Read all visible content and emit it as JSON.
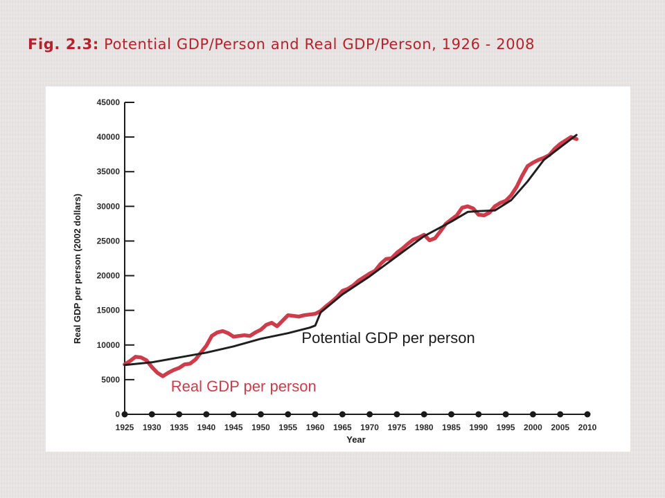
{
  "slide": {
    "title_bold": "Fig. 2.3:",
    "title_rest": "Potential GDP/Person and Real GDP/Person, 1926 - 2008"
  },
  "colors": {
    "title": "#b5212c",
    "real_series": "#cd3c4a",
    "potential_series": "#1f1f1f",
    "axis": "#1a1a1a"
  },
  "chart_data": {
    "type": "line",
    "title": "",
    "xlabel": "Year",
    "ylabel": "Real GDP per person (2002 dollars)",
    "xlim": [
      1925,
      2010
    ],
    "ylim": [
      0,
      45000
    ],
    "x_ticks": [
      1925,
      1930,
      1935,
      1940,
      1945,
      1950,
      1955,
      1960,
      1965,
      1970,
      1975,
      1980,
      1985,
      1990,
      1995,
      2000,
      2005,
      2010
    ],
    "y_ticks": [
      0,
      5000,
      10000,
      15000,
      20000,
      25000,
      30000,
      35000,
      40000,
      45000
    ],
    "grid": false,
    "series": [
      {
        "name": "Real GDP per person",
        "color": "#cd3c4a",
        "x": [
          1925,
          1926,
          1927,
          1928,
          1929,
          1930,
          1931,
          1932,
          1933,
          1934,
          1935,
          1936,
          1937,
          1938,
          1939,
          1940,
          1941,
          1942,
          1943,
          1944,
          1945,
          1946,
          1947,
          1948,
          1949,
          1950,
          1951,
          1952,
          1953,
          1954,
          1955,
          1956,
          1957,
          1958,
          1959,
          1960,
          1961,
          1962,
          1963,
          1964,
          1965,
          1966,
          1967,
          1968,
          1969,
          1970,
          1971,
          1972,
          1973,
          1974,
          1975,
          1976,
          1977,
          1978,
          1979,
          1980,
          1981,
          1982,
          1983,
          1984,
          1985,
          1986,
          1987,
          1988,
          1989,
          1990,
          1991,
          1992,
          1993,
          1994,
          1995,
          1996,
          1997,
          1998,
          1999,
          2000,
          2001,
          2002,
          2003,
          2004,
          2005,
          2006,
          2007,
          2008
        ],
        "values": [
          7200,
          7700,
          8300,
          8200,
          7800,
          6800,
          6000,
          5500,
          6000,
          6400,
          6700,
          7200,
          7300,
          7900,
          8900,
          9900,
          11300,
          11800,
          12000,
          11700,
          11200,
          11300,
          11400,
          11300,
          11800,
          12200,
          12900,
          13200,
          12700,
          13500,
          14300,
          14200,
          14100,
          14300,
          14400,
          14500,
          14900,
          15600,
          16200,
          16900,
          17800,
          18100,
          18600,
          19300,
          19800,
          20300,
          20700,
          21700,
          22400,
          22500,
          23300,
          23900,
          24600,
          25200,
          25500,
          25900,
          25100,
          25400,
          26400,
          27500,
          28100,
          28700,
          29800,
          30000,
          29700,
          28800,
          28700,
          29100,
          30000,
          30500,
          30800,
          31600,
          32800,
          34400,
          35800,
          36300,
          36700,
          37000,
          37400,
          38300,
          39000,
          39500,
          40000,
          39700
        ]
      },
      {
        "name": "Potential GDP per person",
        "color": "#1f1f1f",
        "x": [
          1925,
          1930,
          1935,
          1940,
          1945,
          1950,
          1955,
          1959,
          1960,
          1961,
          1965,
          1970,
          1975,
          1980,
          1985,
          1988,
          1990,
          1993,
          1996,
          1999,
          2002,
          2005,
          2008
        ],
        "values": [
          7100,
          7500,
          8200,
          8900,
          9800,
          10900,
          11700,
          12500,
          12800,
          14700,
          17300,
          19900,
          22800,
          25700,
          27800,
          29200,
          29300,
          29400,
          30900,
          33600,
          36700,
          38500,
          40300
        ]
      }
    ],
    "annotations": [
      {
        "text": "Potential GDP per person",
        "x": 1957.5,
        "y": 10300
      },
      {
        "text": "Real GDP per person",
        "x": 1933.5,
        "y": 3300
      }
    ],
    "legend": "none"
  }
}
